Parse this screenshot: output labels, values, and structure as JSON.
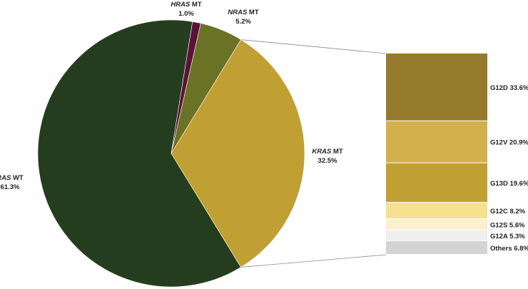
{
  "chart_data": [
    {
      "type": "pie",
      "slices": [
        {
          "gene": "RAS",
          "status": "WT",
          "value": 61.3,
          "pct_label": "61.3%",
          "color": "#243d1e"
        },
        {
          "gene": "HRAS",
          "status": "MT",
          "value": 1.0,
          "pct_label": "1.0%",
          "color": "#5c1238"
        },
        {
          "gene": "NRAS",
          "status": "MT",
          "value": 5.2,
          "pct_label": "5.2%",
          "color": "#6a7225"
        },
        {
          "gene": "KRAS",
          "status": "MT",
          "value": 32.5,
          "pct_label": "32.5%",
          "color": "#c0a033"
        }
      ],
      "exploded_slice": "KRAS"
    },
    {
      "type": "bar",
      "stacked": true,
      "segments": [
        {
          "label": "G12D 33.6%",
          "value": 33.6,
          "color": "#957a2c"
        },
        {
          "label": "G12V 20.9%",
          "value": 20.9,
          "color": "#d3b04b"
        },
        {
          "label": "G13D 19.6%",
          "value": 19.6,
          "color": "#c0a033"
        },
        {
          "label": "G12C 8.2%",
          "value": 8.2,
          "color": "#f4e28f"
        },
        {
          "label": "G12S 5.6%",
          "value": 5.6,
          "color": "#faf0cf"
        },
        {
          "label": "G12A 5.3%",
          "value": 5.3,
          "color": "#efefef"
        },
        {
          "label": "Others 6.8%",
          "value": 6.8,
          "color": "#d3d3d3"
        }
      ]
    }
  ]
}
